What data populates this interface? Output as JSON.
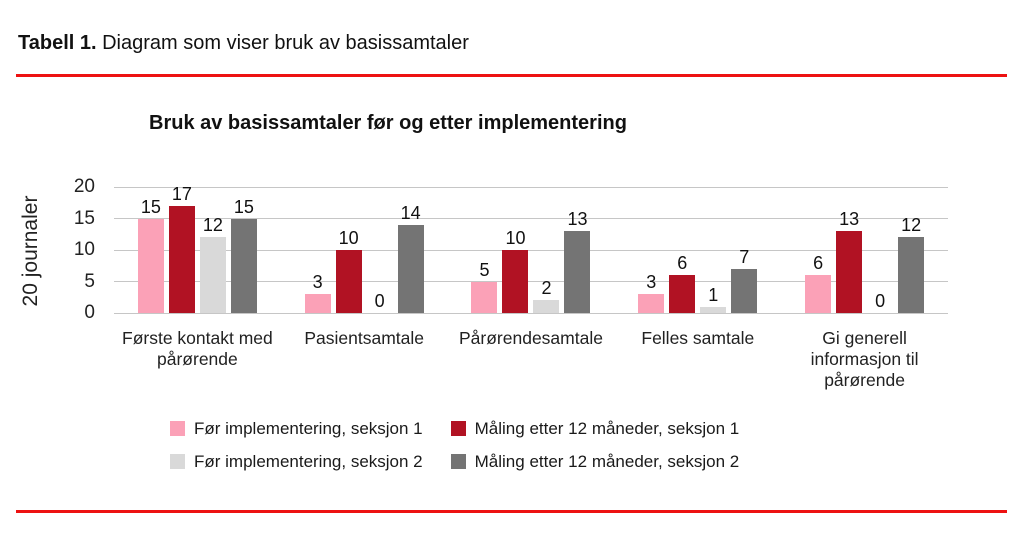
{
  "page": {
    "table_label": "Tabell 1.",
    "table_caption": "Diagram som viser bruk av basissamtaler",
    "rule_color": "#ed1111"
  },
  "chart_data": {
    "type": "bar",
    "title": "Bruk av basissamtaler før og etter implementering",
    "ylabel": "20 journaler",
    "xlabel": "",
    "ylim": [
      0,
      20
    ],
    "yticks": [
      0,
      5,
      10,
      15,
      20
    ],
    "grid": true,
    "legend_position": "bottom",
    "gridline_color": "#c6c6c6",
    "categories": [
      "Første kontakt med pårørende",
      "Pasientsamtale",
      "Pårørendesamtale",
      "Felles samtale",
      "Gi generell informasjon til pårørende"
    ],
    "series": [
      {
        "name": "Før implementering, seksjon 1",
        "color": "#fba1b7",
        "values": [
          15,
          3,
          5,
          3,
          6
        ]
      },
      {
        "name": "Måling etter 12 måneder, seksjon 1",
        "color": "#b11223",
        "values": [
          17,
          10,
          10,
          6,
          13
        ]
      },
      {
        "name": "Før implementering, seksjon 2",
        "color": "#d9d9d9",
        "values": [
          12,
          0,
          2,
          1,
          0
        ]
      },
      {
        "name": "Måling etter 12 måneder, seksjon 2",
        "color": "#747474",
        "values": [
          15,
          14,
          13,
          7,
          12
        ]
      }
    ]
  }
}
